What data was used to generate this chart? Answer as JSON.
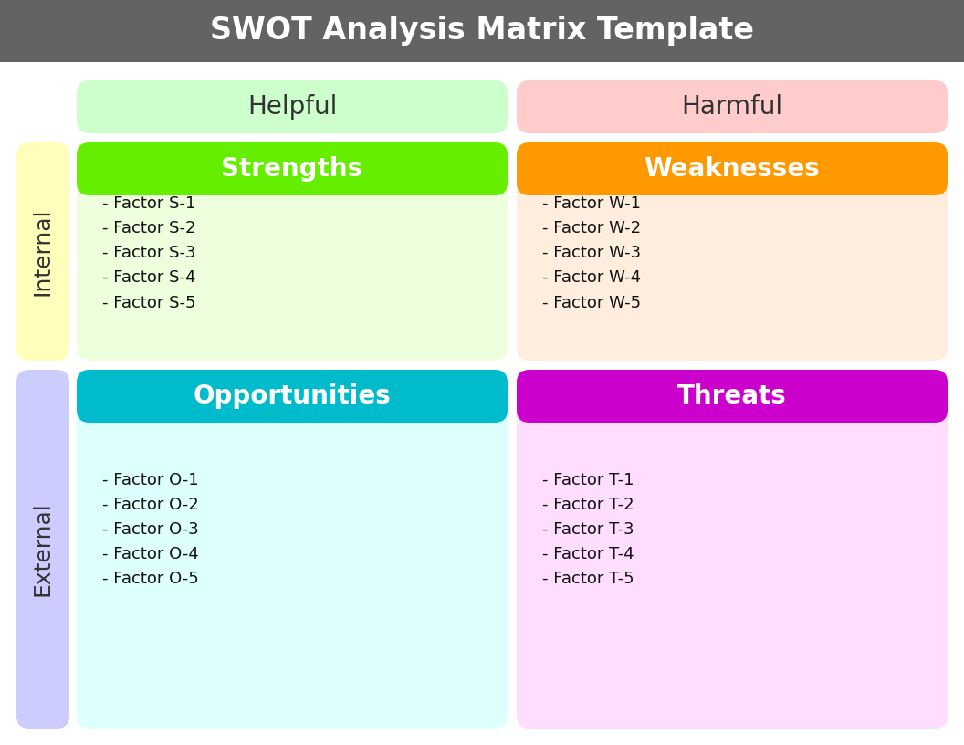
{
  "title": "SWOT Analysis Matrix Template",
  "title_bg": "#636363",
  "title_color": "#ffffff",
  "title_fontsize": 24,
  "col_headers": [
    "Helpful",
    "Harmful"
  ],
  "col_header_bg": [
    "#ccffcc",
    "#ffcccc"
  ],
  "col_header_color": "#333333",
  "col_header_fontsize": 20,
  "row_headers": [
    "Internal",
    "External"
  ],
  "row_header_bg_internal": "#ffffbb",
  "row_header_bg_external": "#ccccff",
  "row_header_color": "#333333",
  "row_header_fontsize": 18,
  "quadrant_titles": [
    "Strengths",
    "Weaknesses",
    "Opportunities",
    "Threats"
  ],
  "quadrant_title_bg": [
    "#66ee00",
    "#ff9900",
    "#00bbcc",
    "#cc00cc"
  ],
  "quadrant_title_color": "#ffffff",
  "quadrant_title_fontsize": 20,
  "quadrant_body_bg": [
    "#eeffdd",
    "#ffeedd",
    "#ddfffe",
    "#ffddff"
  ],
  "quadrant_body_color": "#111111",
  "quadrant_body_fontsize": 13,
  "factors": {
    "Strengths": [
      "- Factor S-1",
      "- Factor S-2",
      "- Factor S-3",
      "- Factor S-4",
      "- Factor S-5"
    ],
    "Weaknesses": [
      "- Factor W-1",
      "- Factor W-2",
      "- Factor W-3",
      "- Factor W-4",
      "- Factor W-5"
    ],
    "Opportunities": [
      "- Factor O-1",
      "- Factor O-2",
      "- Factor O-3",
      "- Factor O-4",
      "- Factor O-5"
    ],
    "Threats": [
      "- Factor T-1",
      "- Factor T-2",
      "- Factor T-3",
      "- Factor T-4",
      "- Factor T-5"
    ]
  },
  "bg_color": "#ffffff"
}
